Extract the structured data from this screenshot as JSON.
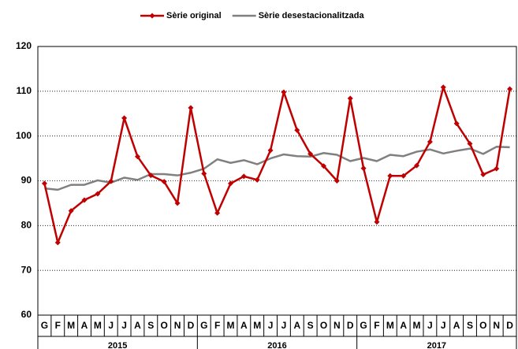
{
  "chart_data": {
    "type": "line",
    "categories": [
      "G",
      "F",
      "M",
      "A",
      "M",
      "J",
      "J",
      "A",
      "S",
      "O",
      "N",
      "D",
      "G",
      "F",
      "M",
      "A",
      "M",
      "J",
      "J",
      "A",
      "S",
      "O",
      "N",
      "D",
      "G",
      "F",
      "M",
      "A",
      "M",
      "J",
      "J",
      "A",
      "S",
      "O",
      "N",
      "D"
    ],
    "category_groups": [
      "2015",
      "2016",
      "2017"
    ],
    "series": [
      {
        "name": "Sèrie original",
        "color": "#c00000",
        "marker": "diamond",
        "values": [
          89.4,
          76.2,
          83.3,
          85.7,
          87.1,
          89.9,
          104.0,
          95.4,
          91.2,
          89.8,
          85.0,
          106.3,
          91.6,
          82.8,
          89.4,
          91.0,
          90.2,
          96.8,
          109.8,
          101.3,
          96.0,
          93.3,
          90.0,
          108.4,
          92.8,
          80.8,
          91.1,
          91.1,
          93.4,
          98.7,
          110.9,
          102.8,
          98.3,
          91.4,
          92.7,
          110.5
        ]
      },
      {
        "name": "Sèrie desestacionalitzada",
        "color": "#808080",
        "marker": "none",
        "values": [
          88.3,
          88.0,
          89.1,
          89.1,
          90.1,
          89.6,
          90.7,
          90.2,
          91.5,
          91.5,
          91.2,
          91.8,
          92.7,
          94.8,
          94.0,
          94.6,
          93.7,
          95.0,
          95.9,
          95.5,
          95.4,
          96.2,
          95.8,
          94.4,
          95.1,
          94.4,
          95.8,
          95.5,
          96.5,
          97.0,
          96.1,
          96.7,
          97.2,
          96.0,
          97.6,
          97.5
        ]
      }
    ],
    "ylim": [
      60,
      120
    ],
    "yticks": [
      60,
      70,
      80,
      90,
      100,
      110,
      120
    ],
    "grid": true,
    "legend": "top"
  }
}
